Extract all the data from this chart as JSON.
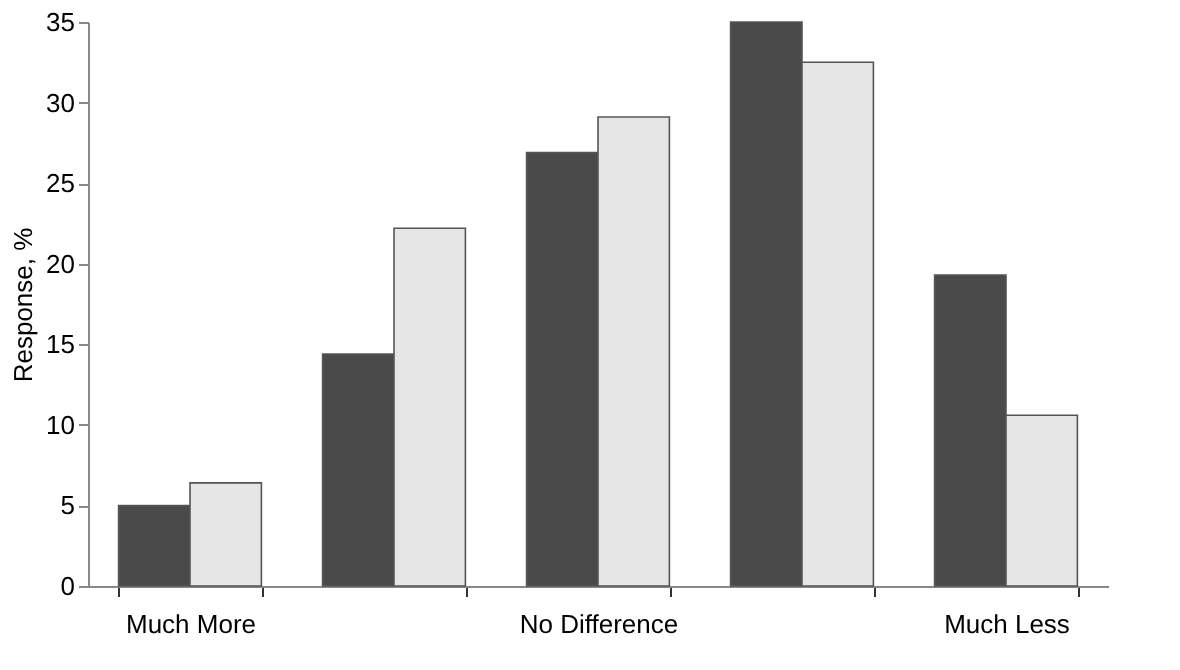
{
  "chart_data": {
    "type": "bar",
    "ylabel": "Response, %",
    "categories": [
      "Much More",
      null,
      "No Difference",
      null,
      "Much Less"
    ],
    "series": [
      {
        "color": "#4a4a4a",
        "values": [
          5.0,
          14.4,
          26.9,
          35.0,
          19.3
        ]
      },
      {
        "color": "#e6e6e6",
        "values": [
          6.4,
          22.2,
          29.1,
          32.5,
          10.6
        ]
      }
    ],
    "ylim": [
      0,
      35
    ],
    "yticks": [
      0,
      5,
      10,
      15,
      20,
      25,
      30,
      35
    ],
    "grid": false,
    "legend": false
  }
}
